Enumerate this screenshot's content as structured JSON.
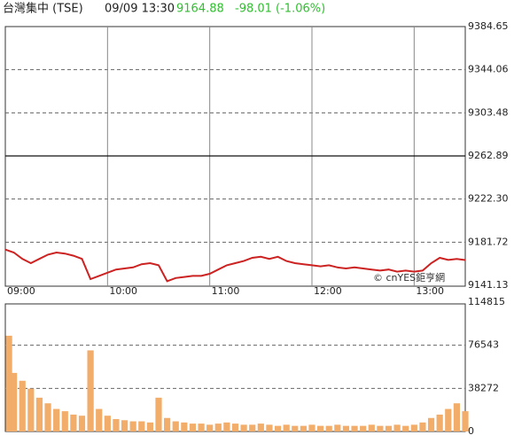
{
  "header": {
    "name": "台灣集中 (TSE)",
    "datetime": "09/09 13:30",
    "last": 9164.88,
    "change": "-98.01 (-1.06%)"
  },
  "watermark": "© cnYES鉅亨網",
  "chart_data": [
    {
      "type": "line",
      "color": "#cc2222",
      "x": [
        "09:00",
        "09:05",
        "09:10",
        "09:15",
        "09:20",
        "09:25",
        "09:30",
        "09:35",
        "09:40",
        "09:45",
        "09:50",
        "09:55",
        "10:00",
        "10:05",
        "10:10",
        "10:15",
        "10:20",
        "10:25",
        "10:30",
        "10:35",
        "10:40",
        "10:45",
        "10:50",
        "10:55",
        "11:00",
        "11:05",
        "11:10",
        "11:15",
        "11:20",
        "11:25",
        "11:30",
        "11:35",
        "11:40",
        "11:45",
        "11:50",
        "11:55",
        "12:00",
        "12:05",
        "12:10",
        "12:15",
        "12:20",
        "12:25",
        "12:30",
        "12:35",
        "12:40",
        "12:45",
        "12:50",
        "12:55",
        "13:00",
        "13:05",
        "13:10",
        "13:15",
        "13:20",
        "13:25",
        "13:30"
      ],
      "values": [
        9174.7,
        9172,
        9166,
        9162,
        9166,
        9170,
        9172,
        9171,
        9169,
        9166,
        9147,
        9150,
        9153,
        9156,
        9157,
        9158,
        9161,
        9162,
        9160,
        9145,
        9148,
        9149,
        9150,
        9150,
        9152,
        9156,
        9160,
        9162,
        9164,
        9167,
        9168,
        9166,
        9168,
        9164,
        9162,
        9161,
        9160,
        9159,
        9160,
        9158,
        9157,
        9158,
        9157,
        9156,
        9155,
        9156,
        9154,
        9155,
        9154,
        9155,
        9162,
        9167,
        9165,
        9166,
        9164.88
      ],
      "xlim": [
        "09:00",
        "13:30"
      ],
      "xticks": [
        "09:00",
        "10:00",
        "11:00",
        "12:00",
        "13:00"
      ],
      "ylim": [
        9141.13,
        9384.65
      ],
      "yticks": [
        9384.65,
        9344.06,
        9303.48,
        9262.89,
        {
          "value": 9222.3,
          "label": "9222.30"
        },
        9181.72,
        9141.13
      ],
      "baseline": 9262.89,
      "grid": true
    },
    {
      "type": "bar",
      "color": "#f2ad6a",
      "x": [
        "09:00",
        "09:05",
        "09:10",
        "09:15",
        "09:20",
        "09:25",
        "09:30",
        "09:35",
        "09:40",
        "09:45",
        "09:50",
        "09:55",
        "10:00",
        "10:05",
        "10:10",
        "10:15",
        "10:20",
        "10:25",
        "10:30",
        "10:35",
        "10:40",
        "10:45",
        "10:50",
        "10:55",
        "11:00",
        "11:05",
        "11:10",
        "11:15",
        "11:20",
        "11:25",
        "11:30",
        "11:35",
        "11:40",
        "11:45",
        "11:50",
        "11:55",
        "12:00",
        "12:05",
        "12:10",
        "12:15",
        "12:20",
        "12:25",
        "12:30",
        "12:35",
        "12:40",
        "12:45",
        "12:50",
        "12:55",
        "13:00",
        "13:05",
        "13:10",
        "13:15",
        "13:20",
        "13:25",
        "13:30"
      ],
      "values": [
        85000,
        52000,
        45000,
        38000,
        30000,
        25000,
        20000,
        18000,
        15000,
        14000,
        72000,
        20000,
        14000,
        11000,
        10000,
        9000,
        9000,
        8000,
        30000,
        12000,
        9000,
        8000,
        7000,
        7000,
        6000,
        7000,
        8000,
        7000,
        6000,
        6000,
        7000,
        6000,
        5000,
        6000,
        5000,
        5000,
        6000,
        5000,
        5000,
        6000,
        5000,
        5000,
        5000,
        6000,
        5000,
        5000,
        6000,
        5000,
        6000,
        8000,
        12000,
        15000,
        20000,
        25000,
        18000
      ],
      "xlim": [
        "09:00",
        "13:30"
      ],
      "ylim": [
        0,
        114815
      ],
      "yticks": [
        114815,
        76543,
        38272,
        0
      ],
      "grid": true
    }
  ]
}
